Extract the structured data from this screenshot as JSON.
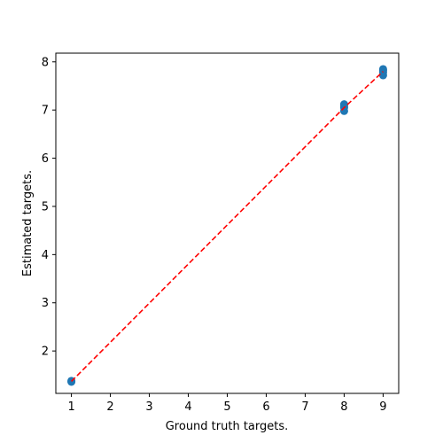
{
  "chart_data": {
    "type": "scatter",
    "xlabel": "Ground truth targets.",
    "ylabel": "Estimated targets.",
    "xlim": [
      0.6,
      9.4
    ],
    "ylim": [
      1.12,
      8.18
    ],
    "x_ticks": [
      1,
      2,
      3,
      4,
      5,
      6,
      7,
      8,
      9
    ],
    "y_ticks": [
      2,
      3,
      4,
      5,
      6,
      7,
      8
    ],
    "grid": false,
    "series": [
      {
        "type": "scatter",
        "color": "#1f77b4",
        "points": [
          [
            1,
            1.37
          ],
          [
            1,
            1.38
          ],
          [
            1,
            1.36
          ],
          [
            8,
            7.12
          ],
          [
            8,
            7.05
          ],
          [
            8,
            6.98
          ],
          [
            8,
            7.08
          ],
          [
            9,
            7.85
          ],
          [
            9,
            7.78
          ],
          [
            9,
            7.72
          ],
          [
            9,
            7.82
          ]
        ]
      },
      {
        "type": "line",
        "color": "#ff0000",
        "style": "dashed",
        "x": [
          1,
          8,
          9
        ],
        "y": [
          1.37,
          7.05,
          7.8
        ]
      }
    ]
  }
}
